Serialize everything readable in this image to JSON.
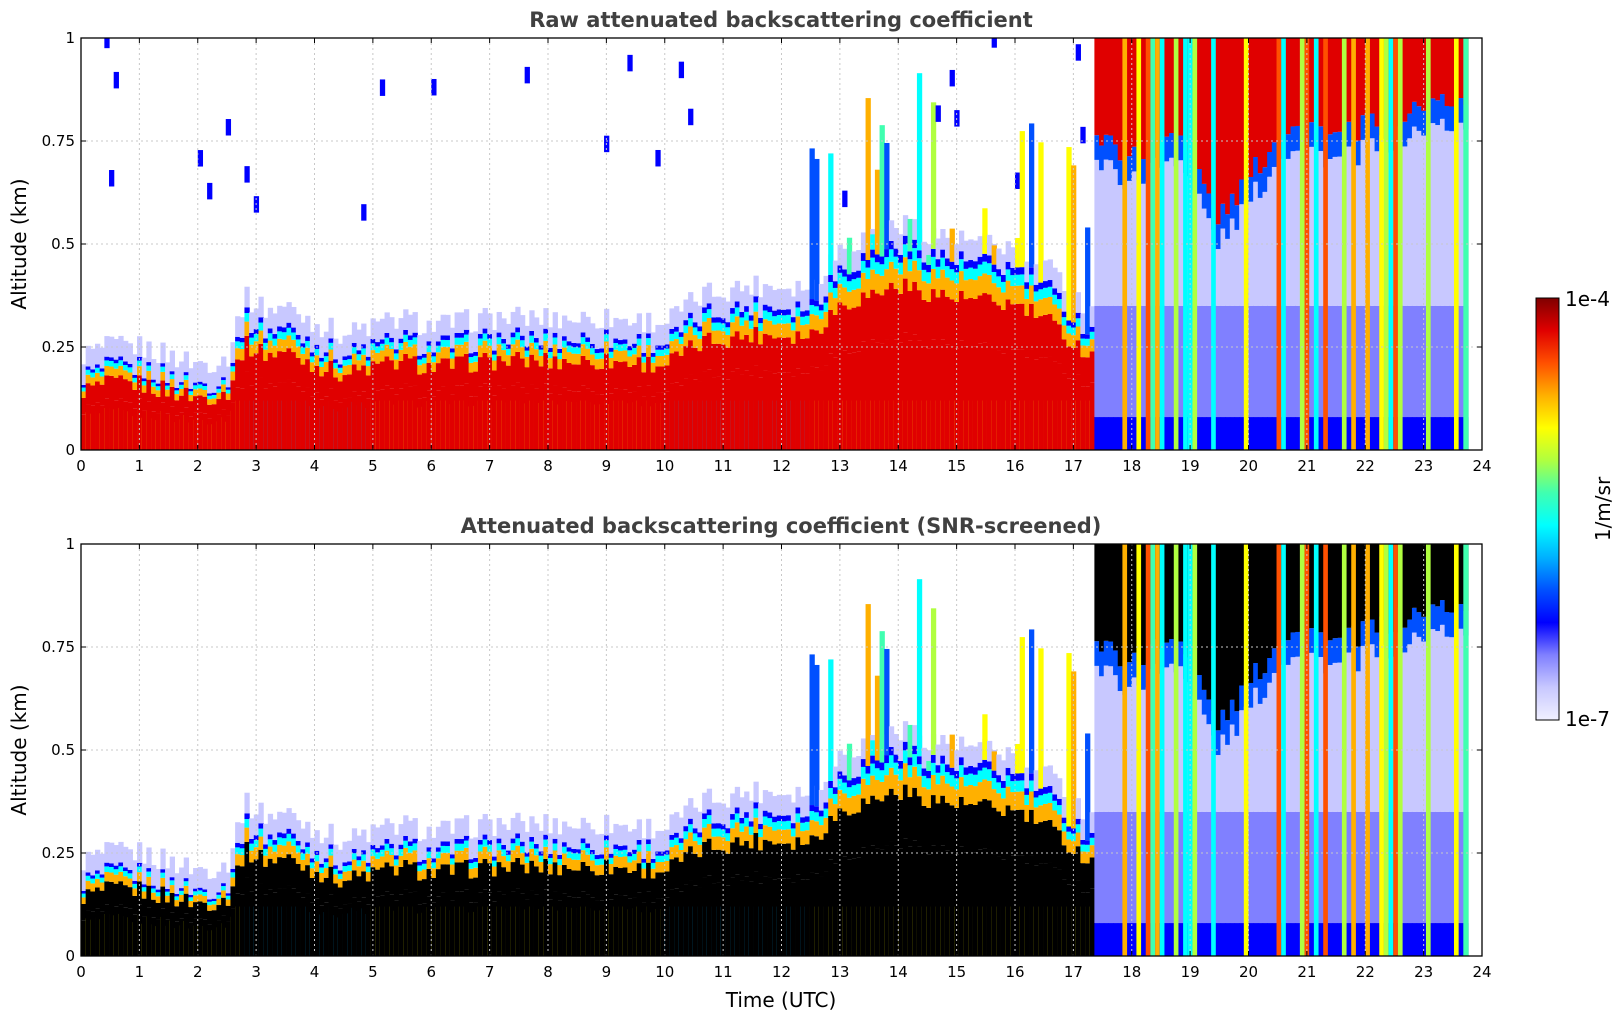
{
  "chart_data": [
    {
      "type": "heatmap",
      "title": "Raw attenuated backscattering coefficient",
      "xlabel": "",
      "ylabel": "Altitude (km)",
      "xlim": [
        0,
        24
      ],
      "ylim": [
        0,
        1
      ],
      "x_ticks": [
        "0",
        "1",
        "2",
        "3",
        "4",
        "5",
        "6",
        "7",
        "8",
        "9",
        "10",
        "11",
        "12",
        "13",
        "14",
        "15",
        "16",
        "17",
        "18",
        "19",
        "20",
        "21",
        "22",
        "23",
        "24"
      ],
      "y_ticks": [
        "0",
        "0.25",
        "0.5",
        "0.75",
        "1"
      ],
      "grid": true,
      "screened": false,
      "layer_top_km": [
        [
          0,
          0.18
        ],
        [
          0.5,
          0.2
        ],
        [
          1,
          0.2
        ],
        [
          1.5,
          0.18
        ],
        [
          2,
          0.16
        ],
        [
          2.5,
          0.17
        ],
        [
          2.8,
          0.32
        ],
        [
          3.2,
          0.29
        ],
        [
          3.5,
          0.3
        ],
        [
          4,
          0.26
        ],
        [
          4.5,
          0.23
        ],
        [
          5,
          0.25
        ],
        [
          5.5,
          0.27
        ],
        [
          6,
          0.25
        ],
        [
          7,
          0.27
        ],
        [
          8,
          0.27
        ],
        [
          9,
          0.27
        ],
        [
          10,
          0.26
        ],
        [
          10.7,
          0.33
        ],
        [
          11.5,
          0.35
        ],
        [
          12.5,
          0.35
        ],
        [
          13,
          0.44
        ],
        [
          14,
          0.5
        ],
        [
          15,
          0.46
        ],
        [
          16,
          0.44
        ],
        [
          16.5,
          0.4
        ],
        [
          17.2,
          0.3
        ]
      ],
      "high_cloud_km": [
        [
          17.4,
          0.8
        ],
        [
          18,
          0.75
        ],
        [
          18.8,
          0.82
        ],
        [
          19.5,
          0.6
        ],
        [
          20,
          0.7
        ],
        [
          20.8,
          0.85
        ],
        [
          21.5,
          0.8
        ],
        [
          22.5,
          0.85
        ],
        [
          23,
          0.88
        ],
        [
          23.7,
          0.9
        ]
      ]
    },
    {
      "type": "heatmap",
      "title": "Attenuated backscattering coefficient (SNR-screened)",
      "xlabel": "Time (UTC)",
      "ylabel": "Altitude (km)",
      "xlim": [
        0,
        24
      ],
      "ylim": [
        0,
        1
      ],
      "x_ticks": [
        "0",
        "1",
        "2",
        "3",
        "4",
        "5",
        "6",
        "7",
        "8",
        "9",
        "10",
        "11",
        "12",
        "13",
        "14",
        "15",
        "16",
        "17",
        "18",
        "19",
        "20",
        "21",
        "22",
        "23",
        "24"
      ],
      "y_ticks": [
        "0",
        "0.25",
        "0.5",
        "0.75",
        "1"
      ],
      "grid": true,
      "screened": true,
      "layer_top_km": [
        [
          0,
          0.18
        ],
        [
          0.5,
          0.2
        ],
        [
          1,
          0.2
        ],
        [
          1.5,
          0.18
        ],
        [
          2,
          0.16
        ],
        [
          2.5,
          0.17
        ],
        [
          2.8,
          0.32
        ],
        [
          3.2,
          0.29
        ],
        [
          3.5,
          0.3
        ],
        [
          4,
          0.26
        ],
        [
          4.5,
          0.23
        ],
        [
          5,
          0.25
        ],
        [
          5.5,
          0.27
        ],
        [
          6,
          0.25
        ],
        [
          7,
          0.27
        ],
        [
          8,
          0.27
        ],
        [
          9,
          0.27
        ],
        [
          10,
          0.26
        ],
        [
          10.7,
          0.33
        ],
        [
          11.5,
          0.35
        ],
        [
          12.5,
          0.35
        ],
        [
          13,
          0.44
        ],
        [
          14,
          0.5
        ],
        [
          15,
          0.46
        ],
        [
          16,
          0.44
        ],
        [
          16.5,
          0.4
        ],
        [
          17.2,
          0.3
        ]
      ],
      "high_cloud_km": [
        [
          17.4,
          0.8
        ],
        [
          18,
          0.75
        ],
        [
          18.8,
          0.82
        ],
        [
          19.5,
          0.6
        ],
        [
          20,
          0.7
        ],
        [
          20.8,
          0.85
        ],
        [
          21.5,
          0.8
        ],
        [
          22.5,
          0.85
        ],
        [
          23,
          0.88
        ],
        [
          23.7,
          0.9
        ]
      ]
    }
  ],
  "colorbar": {
    "max_label": "1e-4",
    "min_label": "1e-7",
    "units_label": "1/m/sr",
    "colormap": [
      "#f0f0ff",
      "#c8c8ff",
      "#8080ff",
      "#0000ff",
      "#0050ff",
      "#00b0ff",
      "#00ffff",
      "#40ffb0",
      "#b0ff40",
      "#ffff00",
      "#ffb000",
      "#ff5000",
      "#e00000",
      "#800000"
    ],
    "saturation_color": "#000000"
  }
}
